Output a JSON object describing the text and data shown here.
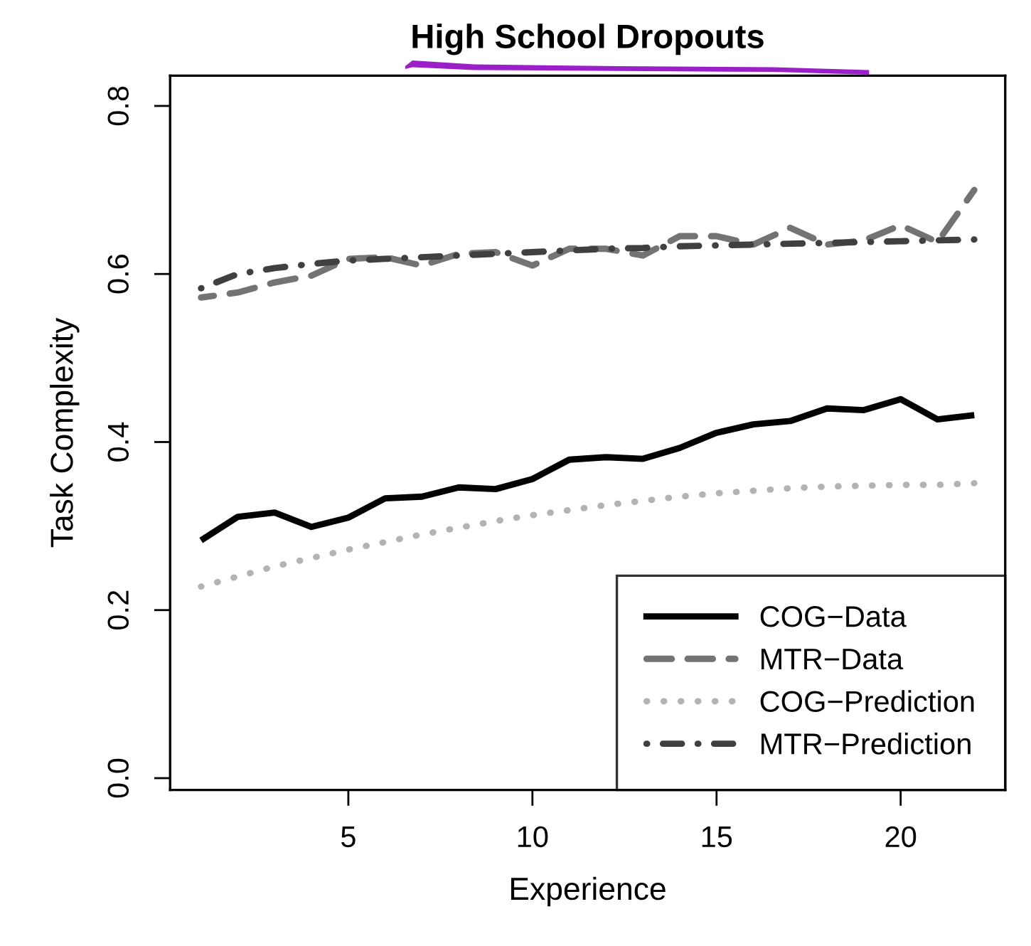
{
  "chart_data": {
    "type": "line",
    "title": "High School Dropouts",
    "xlabel": "Experience",
    "ylabel": "Task Complexity",
    "x": [
      1,
      2,
      3,
      4,
      5,
      6,
      7,
      8,
      9,
      10,
      11,
      12,
      13,
      14,
      15,
      16,
      17,
      18,
      19,
      20,
      21,
      22
    ],
    "series": [
      {
        "name": "COG−Data",
        "color": "#000000",
        "line_style": "solid",
        "values": [
          0.283,
          0.311,
          0.316,
          0.299,
          0.31,
          0.333,
          0.335,
          0.346,
          0.344,
          0.356,
          0.379,
          0.382,
          0.38,
          0.393,
          0.411,
          0.421,
          0.425,
          0.44,
          0.438,
          0.451,
          0.427,
          0.432
        ]
      },
      {
        "name": "MTR−Data",
        "color": "#737373",
        "line_style": "dashed",
        "values": [
          0.572,
          0.578,
          0.59,
          0.598,
          0.618,
          0.62,
          0.61,
          0.624,
          0.626,
          0.61,
          0.63,
          0.63,
          0.622,
          0.645,
          0.645,
          0.635,
          0.655,
          0.635,
          0.64,
          0.658,
          0.638,
          0.7
        ]
      },
      {
        "name": "COG−Prediction",
        "color": "#b3b3b3",
        "line_style": "dotted",
        "values": [
          0.228,
          0.24,
          0.252,
          0.262,
          0.272,
          0.281,
          0.29,
          0.298,
          0.306,
          0.313,
          0.319,
          0.325,
          0.33,
          0.335,
          0.339,
          0.342,
          0.345,
          0.347,
          0.348,
          0.349,
          0.349,
          0.351
        ]
      },
      {
        "name": "MTR−Prediction",
        "color": "#404040",
        "line_style": "dashdot",
        "values": [
          0.583,
          0.6,
          0.607,
          0.612,
          0.616,
          0.618,
          0.62,
          0.622,
          0.624,
          0.626,
          0.628,
          0.63,
          0.631,
          0.633,
          0.634,
          0.635,
          0.636,
          0.637,
          0.638,
          0.639,
          0.64,
          0.641
        ]
      }
    ],
    "xlim": [
      0.16,
      22.84
    ],
    "ylim": [
      -0.014,
      0.836
    ],
    "xticks": [
      5,
      10,
      15,
      20
    ],
    "yticks": [
      {
        "value": 0.0,
        "label": "0.0"
      },
      0.2,
      0.4,
      0.6,
      0.8
    ],
    "legend": "bottom right",
    "grid": false,
    "marker": "none"
  }
}
